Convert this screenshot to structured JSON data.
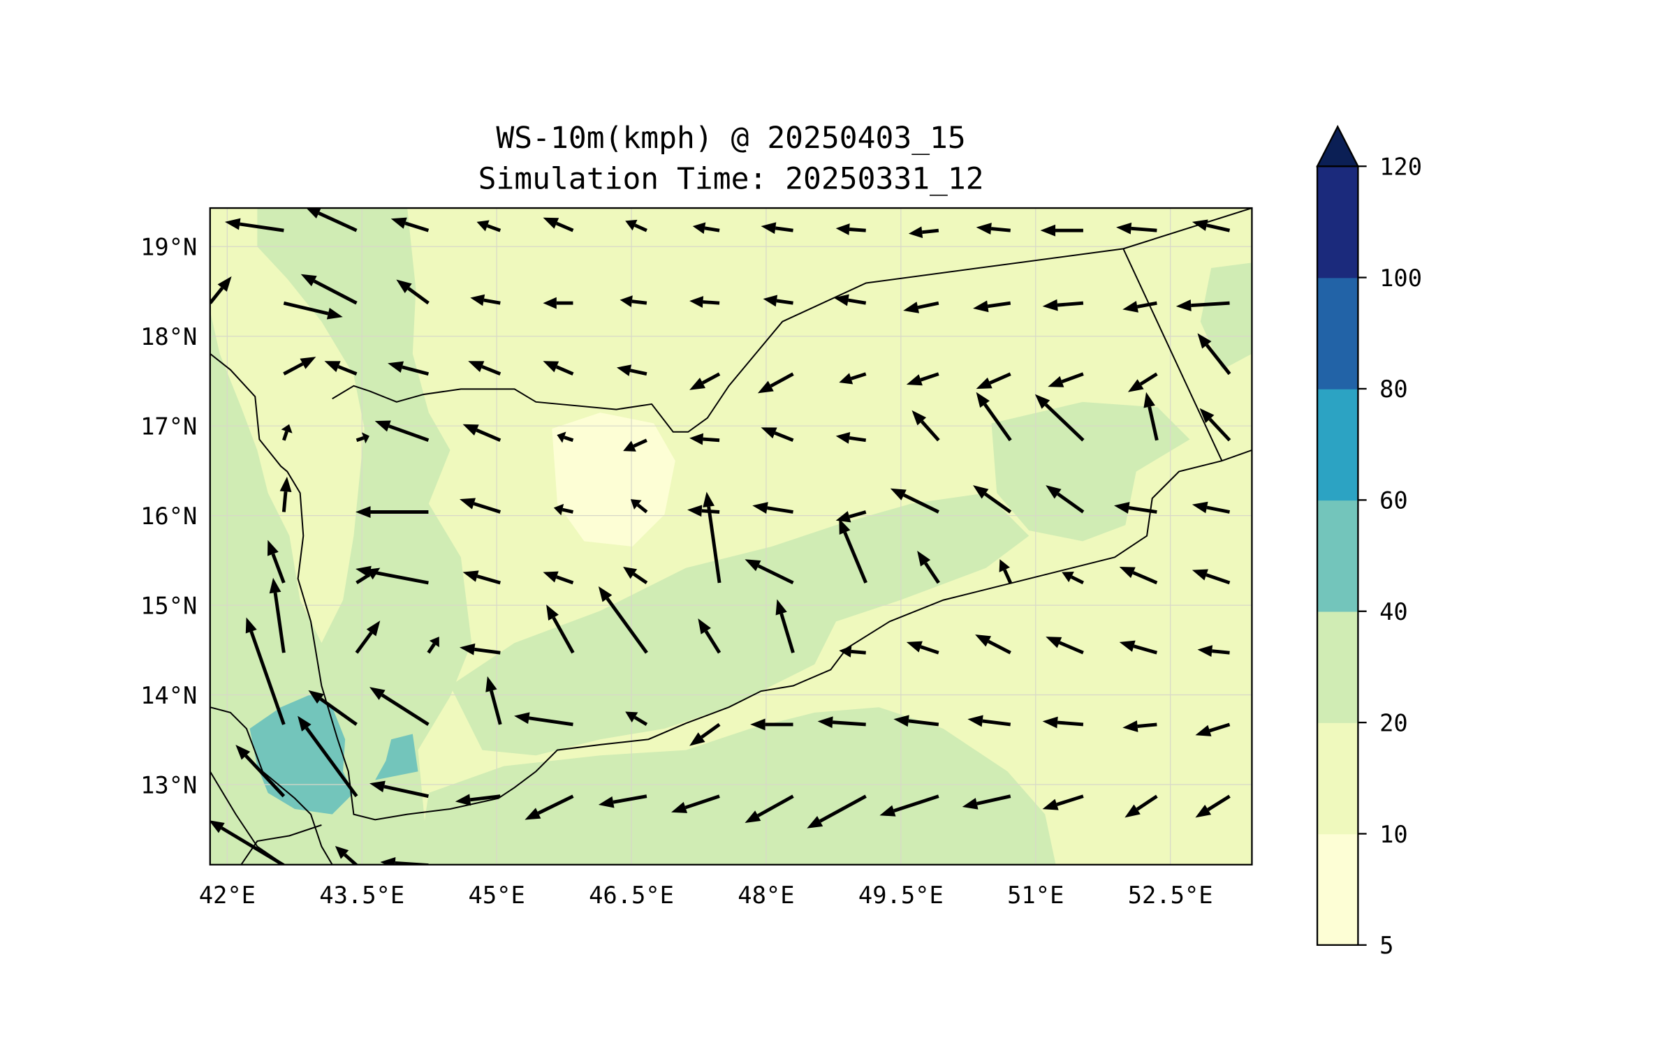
{
  "chart_data": {
    "type": "map-contour-quiver",
    "title_line1": "WS-10m(kmph) @ 20250403_15",
    "title_line2": "Simulation Time: 20250331_12",
    "lon_range": [
      41.81,
      53.41
    ],
    "lat_range": [
      12.1,
      19.43
    ],
    "x_ticks": [
      "42°E",
      "43.5°E",
      "45°E",
      "46.5°E",
      "48°E",
      "49.5°E",
      "51°E",
      "52.5°E"
    ],
    "x_tick_values": [
      42,
      43.5,
      45,
      46.5,
      48,
      49.5,
      51,
      52.5
    ],
    "y_ticks": [
      "19°N",
      "18°N",
      "17°N",
      "16°N",
      "15°N",
      "14°N",
      "13°N"
    ],
    "y_tick_values": [
      19,
      18,
      17,
      16,
      15,
      14,
      13
    ],
    "grid": true,
    "colorbar": {
      "levels": [
        5,
        10,
        20,
        40,
        60,
        80,
        100,
        120
      ],
      "labels": [
        "5",
        "10",
        "20",
        "40",
        "60",
        "80",
        "100",
        "120"
      ],
      "colors": [
        "#fdfed5",
        "#eff9bd",
        "#d0ecb4",
        "#73c5bb",
        "#2ca3c3",
        "#2263a7",
        "#1b2a7c"
      ],
      "extend_color": "#0b1f55",
      "extend": "max",
      "placement": "right"
    },
    "background_color": "#eff9bd",
    "wind_vectors": {
      "units": "relative arrow length (u east, v north)",
      "lons": [
        41.81,
        42.63,
        43.44,
        44.24,
        45.04,
        45.85,
        46.67,
        47.48,
        48.3,
        49.11,
        49.92,
        50.72,
        51.53,
        52.35,
        53.16
      ],
      "lats": [
        19.18,
        18.37,
        17.58,
        16.84,
        16.04,
        15.25,
        14.47,
        13.67,
        12.87,
        12.1
      ],
      "uv": [
        [
          null,
          [
            -55,
            8
          ],
          [
            -48,
            22
          ],
          [
            -35,
            11
          ],
          [
            -22,
            8
          ],
          [
            -28,
            12
          ],
          [
            -20,
            9
          ],
          [
            -25,
            4
          ],
          [
            -30,
            4
          ],
          [
            -28,
            2
          ],
          [
            -28,
            -3
          ],
          [
            -32,
            3
          ],
          [
            -40,
            0
          ],
          [
            -38,
            3
          ],
          [
            -35,
            8
          ]
        ],
        [
          [
            20,
            25
          ],
          [
            55,
            -13
          ],
          [
            -52,
            27
          ],
          [
            -30,
            22
          ],
          [
            -28,
            5
          ],
          [
            -28,
            0
          ],
          [
            -25,
            3
          ],
          [
            -28,
            2
          ],
          [
            -28,
            4
          ],
          [
            -30,
            5
          ],
          [
            -33,
            -7
          ],
          [
            -35,
            -5
          ],
          [
            -38,
            -3
          ],
          [
            -32,
            -6
          ],
          [
            -50,
            -3
          ]
        ],
        [
          null,
          [
            30,
            16
          ],
          [
            -30,
            12
          ],
          [
            -38,
            10
          ],
          [
            -30,
            12
          ],
          [
            -28,
            12
          ],
          [
            -28,
            6
          ],
          [
            -28,
            -15
          ],
          [
            -33,
            -18
          ],
          [
            -25,
            -8
          ],
          [
            -30,
            -10
          ],
          [
            -32,
            -14
          ],
          [
            -33,
            -12
          ],
          [
            -27,
            -17
          ],
          [
            -30,
            38
          ]
        ],
        [
          null,
          [
            5,
            15
          ],
          [
            12,
            4
          ],
          [
            -50,
            18
          ],
          [
            -35,
            15
          ],
          [
            -15,
            5
          ],
          [
            -22,
            -10
          ],
          [
            -28,
            2
          ],
          [
            -30,
            12
          ],
          [
            -28,
            4
          ],
          [
            -25,
            28
          ],
          [
            -32,
            45
          ],
          [
            -45,
            43
          ],
          [
            -10,
            45
          ],
          [
            -28,
            30
          ]
        ],
        [
          null,
          [
            3,
            33
          ],
          null,
          [
            -68,
            0
          ],
          [
            -38,
            12
          ],
          [
            -18,
            4
          ],
          [
            -15,
            12
          ],
          [
            -30,
            2
          ],
          [
            -38,
            6
          ],
          [
            -28,
            -8
          ],
          [
            -45,
            22
          ],
          [
            -35,
            25
          ],
          [
            -35,
            25
          ],
          [
            -40,
            6
          ],
          [
            -35,
            7
          ]
        ],
        [
          null,
          [
            -15,
            40
          ],
          [
            22,
            14
          ],
          [
            -68,
            13
          ],
          [
            -35,
            10
          ],
          [
            -28,
            10
          ],
          [
            -22,
            15
          ],
          [
            -12,
            85
          ],
          [
            -45,
            22
          ],
          [
            -25,
            60
          ],
          [
            -20,
            30
          ],
          [
            -10,
            22
          ],
          [
            -20,
            10
          ],
          [
            -35,
            15
          ],
          [
            -35,
            12
          ]
        ],
        [
          null,
          [
            -10,
            70
          ],
          [
            22,
            30
          ],
          [
            10,
            15
          ],
          [
            -38,
            5
          ],
          [
            -25,
            45
          ],
          [
            -45,
            62
          ],
          [
            -20,
            32
          ],
          [
            -15,
            50
          ],
          [
            -25,
            2
          ],
          [
            -30,
            10
          ],
          [
            -33,
            17
          ],
          [
            -35,
            15
          ],
          [
            -35,
            10
          ],
          [
            -30,
            3
          ]
        ],
        [
          null,
          [
            -35,
            100
          ],
          [
            -45,
            32
          ],
          [
            -55,
            35
          ],
          [
            -12,
            45
          ],
          [
            -55,
            8
          ],
          [
            -20,
            12
          ],
          [
            -28,
            -20
          ],
          [
            -40,
            0
          ],
          [
            -45,
            3
          ],
          [
            -42,
            5
          ],
          [
            -40,
            5
          ],
          [
            -38,
            3
          ],
          [
            -32,
            -3
          ],
          [
            -32,
            -10
          ]
        ],
        [
          null,
          [
            -45,
            48
          ],
          [
            -55,
            75
          ],
          [
            -55,
            12
          ],
          [
            -42,
            -5
          ],
          [
            -45,
            -22
          ],
          [
            -45,
            -8
          ],
          [
            -45,
            -15
          ],
          [
            -45,
            -25
          ],
          [
            -55,
            -30
          ],
          [
            -55,
            -18
          ],
          [
            -45,
            -10
          ],
          [
            -38,
            -12
          ],
          [
            -30,
            -20
          ],
          [
            -32,
            -20
          ]
        ],
        [
          null,
          [
            -70,
            42
          ],
          [
            -20,
            18
          ],
          [
            -45,
            3
          ],
          null,
          null,
          null,
          null,
          null,
          null,
          null,
          null,
          null,
          null,
          null
        ]
      ]
    }
  }
}
